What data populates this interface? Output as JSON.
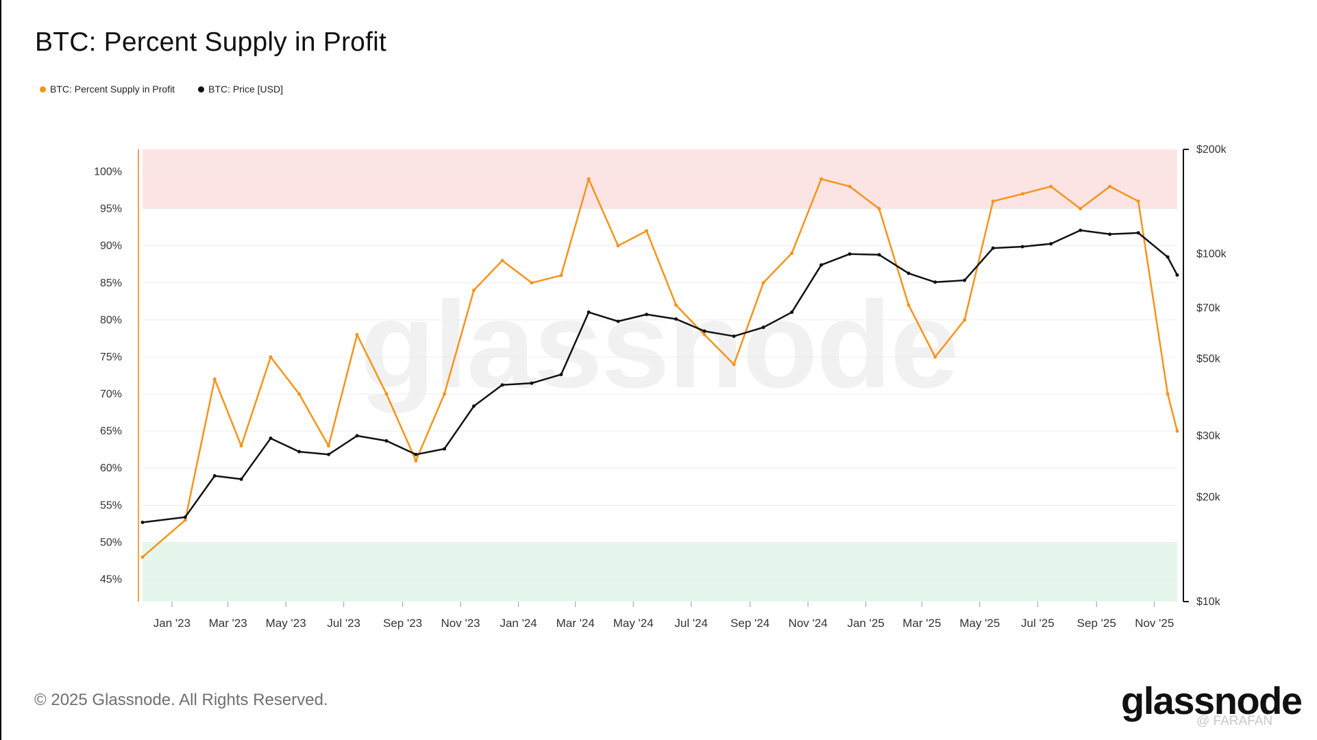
{
  "chart_data": {
    "type": "line",
    "title": "BTC: Percent Supply in Profit",
    "legend": [
      "BTC: Percent Supply in Profit",
      "BTC: Price [USD]"
    ],
    "legend_position": "top-left",
    "x_ticks": [
      "Jan '23",
      "Mar '23",
      "May '23",
      "Jul '23",
      "Sep '23",
      "Nov '23",
      "Jan '24",
      "Mar '24",
      "May '24",
      "Jul '24",
      "Sep '24",
      "Nov '24",
      "Jan '25",
      "Mar '25",
      "May '25",
      "Jul '25",
      "Sep '25",
      "Nov '25"
    ],
    "left_axis_ticks": [
      "100%",
      "95%",
      "90%",
      "85%",
      "80%",
      "75%",
      "70%",
      "65%",
      "60%",
      "55%",
      "50%",
      "45%"
    ],
    "right_axis_ticks": [
      "$200k",
      "$100k",
      "$70k",
      "$50k",
      "$30k",
      "$20k",
      "$10k"
    ],
    "left_axis_range": [
      42,
      103
    ],
    "right_axis_range": [
      10000,
      200000
    ],
    "right_axis_scale": "log",
    "grid": true,
    "bands": [
      {
        "name": "upper-band",
        "from": 95,
        "to": 103,
        "color": "#fde4e4"
      },
      {
        "name": "lower-band",
        "from": 42,
        "to": 50,
        "color": "#e6f6ec"
      }
    ],
    "colors": {
      "supply": "#f7931a",
      "price": "#111111",
      "axis_left": "#f0a24a",
      "axis_right": "#111111"
    },
    "x": [
      "2022-12-01",
      "2023-01-15",
      "2023-02-15",
      "2023-03-15",
      "2023-04-15",
      "2023-05-15",
      "2023-06-15",
      "2023-07-15",
      "2023-08-15",
      "2023-09-15",
      "2023-10-15",
      "2023-11-15",
      "2023-12-15",
      "2024-01-15",
      "2024-02-15",
      "2024-03-15",
      "2024-04-15",
      "2024-05-15",
      "2024-06-15",
      "2024-07-15",
      "2024-08-15",
      "2024-09-15",
      "2024-10-15",
      "2024-11-15",
      "2024-12-15",
      "2025-01-15",
      "2025-02-15",
      "2025-03-15",
      "2025-04-15",
      "2025-05-15",
      "2025-06-15",
      "2025-07-15",
      "2025-08-15",
      "2025-09-15",
      "2025-10-15",
      "2025-11-15",
      "2025-11-25"
    ],
    "series": [
      {
        "name": "BTC: Percent Supply in Profit",
        "axis": "left",
        "values": [
          48,
          53,
          72,
          63,
          75,
          70,
          63,
          78,
          70,
          61,
          70,
          84,
          88,
          85,
          86,
          99,
          90,
          92,
          82,
          78,
          74,
          85,
          89,
          99,
          98,
          95,
          82,
          75,
          80,
          96,
          97,
          98,
          95,
          98,
          96,
          70,
          65
        ]
      },
      {
        "name": "BTC: Price [USD]",
        "axis": "right",
        "values": [
          16900,
          17500,
          23000,
          22500,
          29500,
          27000,
          26500,
          30000,
          29000,
          26500,
          27500,
          36500,
          42000,
          42500,
          45000,
          68000,
          64000,
          67000,
          65000,
          60000,
          58000,
          61500,
          68000,
          93000,
          100000,
          99500,
          88000,
          83000,
          84000,
          104000,
          105000,
          107000,
          117000,
          114000,
          115000,
          98000,
          87000
        ]
      }
    ]
  },
  "footer": {
    "copyright": "© 2025 Glassnode. All Rights Reserved.",
    "brand": "glassnode",
    "handle": "@ FARAFAN"
  }
}
